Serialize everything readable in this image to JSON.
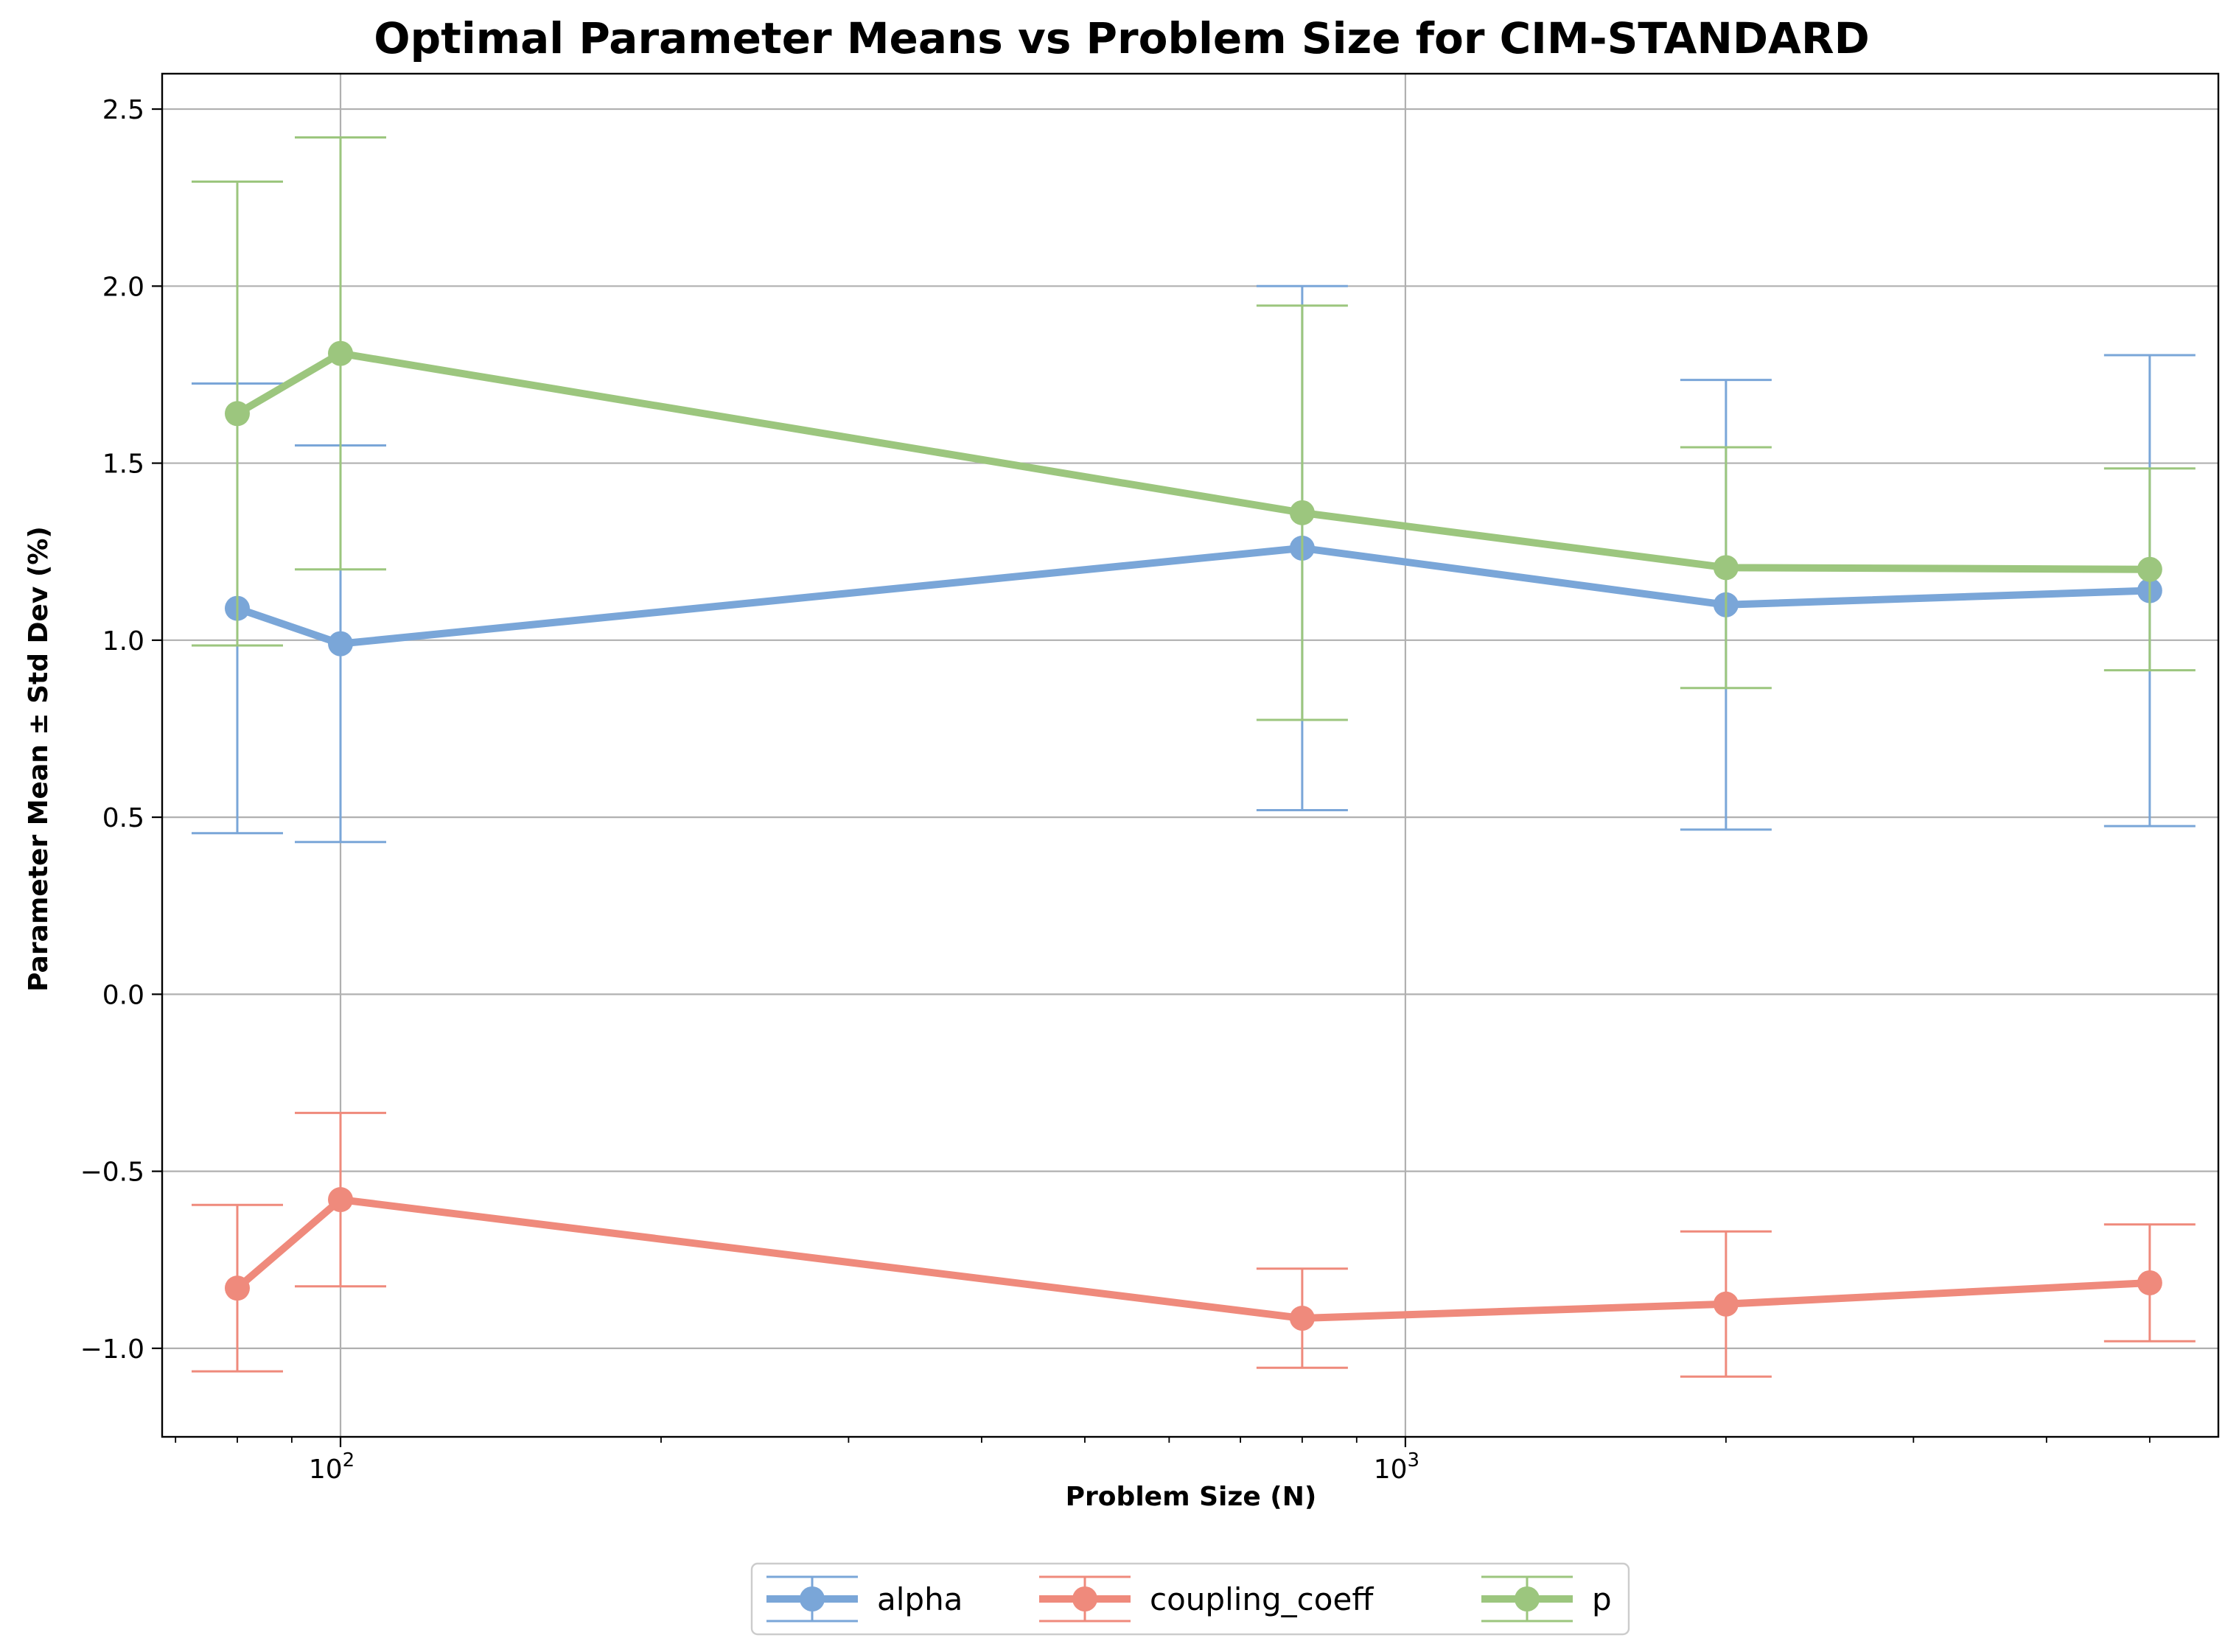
{
  "chart_data": {
    "type": "line",
    "title": "Optimal Parameter Means vs Problem Size for CIM-STANDARD",
    "xlabel": "Problem Size (N)",
    "ylabel": "Parameter Mean ± Std Dev (%)",
    "xscale": "log",
    "xlim": [
      68,
      5800
    ],
    "ylim": [
      -1.25,
      2.6
    ],
    "x": [
      80,
      100,
      800,
      2000,
      5000
    ],
    "x_ticks": [
      {
        "value": 100,
        "base": "10",
        "exp": "2"
      },
      {
        "value": 1000,
        "base": "10",
        "exp": "3"
      }
    ],
    "y_ticks": [
      {
        "value": -1.0,
        "label": "−1.0"
      },
      {
        "value": -0.5,
        "label": "−0.5"
      },
      {
        "value": 0.0,
        "label": "0.0"
      },
      {
        "value": 0.5,
        "label": "0.5"
      },
      {
        "value": 1.0,
        "label": "1.0"
      },
      {
        "value": 1.5,
        "label": "1.5"
      },
      {
        "value": 2.0,
        "label": "2.0"
      },
      {
        "value": 2.5,
        "label": "2.5"
      }
    ],
    "grid": true,
    "legend_position": "bottom-center",
    "series": [
      {
        "name": "alpha",
        "color": "#7aa6d8",
        "values": [
          1.09,
          0.99,
          1.26,
          1.1,
          1.14
        ],
        "errors": [
          0.635,
          0.56,
          0.74,
          0.635,
          0.665
        ]
      },
      {
        "name": "coupling_coeff",
        "color": "#ef8a7c",
        "values": [
          -0.83,
          -0.58,
          -0.915,
          -0.875,
          -0.815
        ],
        "errors": [
          0.235,
          0.245,
          0.14,
          0.205,
          0.165
        ]
      },
      {
        "name": "p",
        "color": "#9cc67e",
        "values": [
          1.64,
          1.81,
          1.36,
          1.205,
          1.2
        ],
        "errors": [
          0.655,
          0.61,
          0.585,
          0.34,
          0.285
        ]
      }
    ]
  }
}
